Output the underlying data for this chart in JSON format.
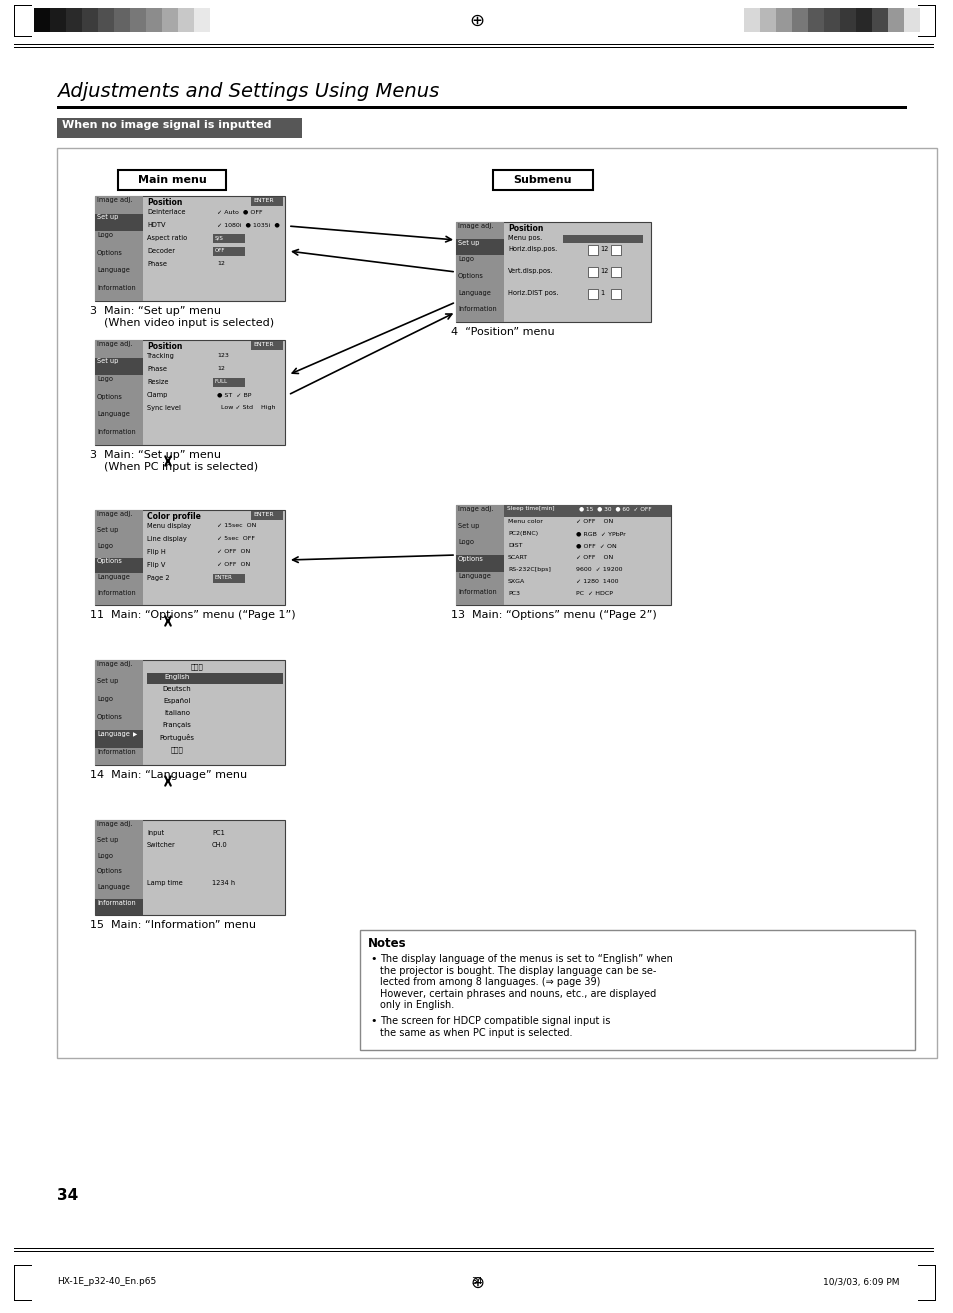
{
  "title": "Adjustments and Settings Using Menus",
  "section_header": "When no image signal is inputted",
  "page_number": "34",
  "footer_left": "HX-1E_p32-40_En.p65",
  "footer_center": "34",
  "footer_right": "10/3/03, 6:09 PM",
  "main_menu_label": "Main menu",
  "submenu_label": "Submenu",
  "note_title": "Notes",
  "note_bullet1": "The display language of the menus is set to “English” when the projector is bought. The display language can be se-\nlected from among 8 languages. (⇒ page 39)\nHowever, certain phrases and nouns, etc., are displayed\nonly in English.",
  "note_bullet2": "The screen for HDCP compatible signal input is\nthe same as when PC input is selected.",
  "label3a_1": "3  Main: “Set up” menu",
  "label3a_2": "    (When video input is selected)",
  "label3b_1": "3  Main: “Set up” menu",
  "label3b_2": "    (When PC input is selected)",
  "label4": "4  “Position” menu",
  "label11": "11  Main: “Options” menu (“Page 1”)",
  "label13": "13  Main: “Options” menu (“Page 2”)",
  "label14": "14  Main: “Language” menu",
  "label15": "15  Main: “Information” menu",
  "bg_color": "#ffffff",
  "strip_left": [
    "#111111",
    "#1e1e1e",
    "#2d2d2d",
    "#3c3c3c",
    "#4b4b4b",
    "#5a5a5a",
    "#787878",
    "#969696",
    "#b4b4b4",
    "#d2d2d2",
    "#f0f0f0"
  ],
  "strip_right": [
    "#d0d0d0",
    "#b0b0b0",
    "#909090",
    "#707070",
    "#505050",
    "#404040",
    "#303030",
    "#202020",
    "#303030",
    "#808080",
    "#d0d0d0"
  ],
  "side_items": [
    "Image adj.",
    "Set up",
    "Logo",
    "Options",
    "Language",
    "Information"
  ]
}
